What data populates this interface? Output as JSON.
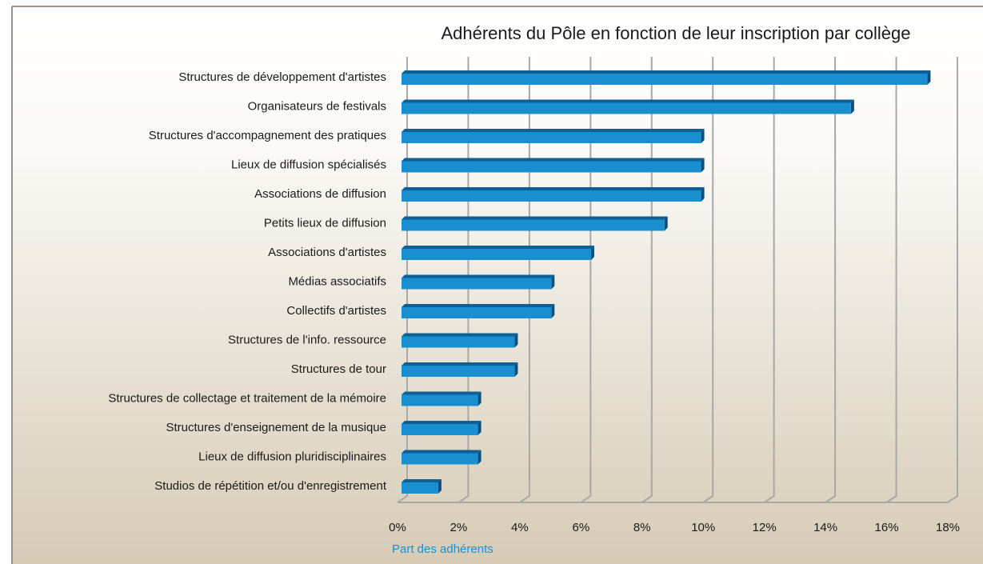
{
  "chart_data": {
    "type": "bar",
    "orientation": "horizontal",
    "title": "Adhérents du Pôle en fonction de leur inscription par collège",
    "x_label": "Part des adhérents",
    "categories": [
      "Structures de développement d'artistes",
      "Organisateurs de festivals",
      "Structures d'accompagnement des pratiques",
      "Lieux de diffusion spécialisés",
      "Associations de diffusion",
      "Petits lieux de diffusion",
      "Associations d'artistes",
      "Médias associatifs",
      "Collectifs d'artistes",
      "Structures de l'info. ressource",
      "Structures de tour",
      "Structures de collectage et traitement de la mémoire",
      "Structures d'enseignement de la musique",
      "Lieux de diffusion pluridisciplinaires",
      "Studios de répétition et/ou d'enregistrement"
    ],
    "values": [
      17.2,
      14.7,
      9.8,
      9.8,
      9.8,
      8.6,
      6.2,
      4.9,
      4.9,
      3.7,
      3.7,
      2.5,
      2.5,
      2.5,
      1.2
    ],
    "color": "#1a8fd0",
    "xlim": [
      0,
      18
    ],
    "xticks": [
      {
        "value": 0,
        "label": "0%"
      },
      {
        "value": 2,
        "label": "2%"
      },
      {
        "value": 4,
        "label": "4%"
      },
      {
        "value": 6,
        "label": "6%"
      },
      {
        "value": 8,
        "label": "8%"
      },
      {
        "value": 10,
        "label": "10%"
      },
      {
        "value": 12,
        "label": "12%"
      },
      {
        "value": 14,
        "label": "14%"
      },
      {
        "value": 16,
        "label": "16%"
      },
      {
        "value": 18,
        "label": "18%"
      }
    ],
    "grid": true
  }
}
